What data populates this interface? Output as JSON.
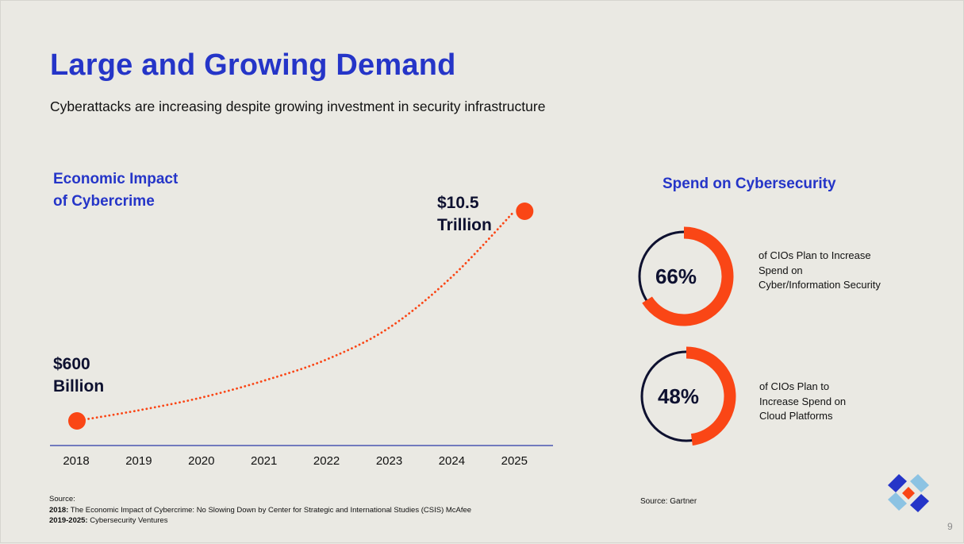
{
  "slide": {
    "title": "Large and Growing Demand",
    "subtitle": "Cyberattacks are increasing despite growing investment in security infrastructure",
    "page_number": "9",
    "colors": {
      "background": "#eae9e3",
      "brand_blue": "#2535c8",
      "accent_orange": "#fa4616",
      "navy": "#0e1130",
      "light_blue": "#8cc3e3"
    }
  },
  "left_panel": {
    "title_line1": "Economic Impact",
    "title_line2": "of Cybercrime",
    "start_label_line1": "$600",
    "start_label_line2": "Billion",
    "end_label_line1": "$10.5",
    "end_label_line2": "Trillion",
    "source": {
      "heading": "Source:",
      "line1_bold": "2018:",
      "line1_text": " The Economic Impact of Cybercrime: No Slowing Down by Center for Strategic and International Studies (CSIS) McAfee",
      "line2_bold": "2019-2025:",
      "line2_text": " Cybersecurity Ventures"
    }
  },
  "right_panel": {
    "title": "Spend on Cybersecurity",
    "donuts": [
      {
        "value": 66,
        "label": "66%",
        "description": "of CIOs Plan to Increase Spend on Cyber/Information Security"
      },
      {
        "value": 48,
        "label": "48%",
        "description": "of CIOs Plan to Increase Spend on Cloud Platforms"
      }
    ],
    "source": "Source: Gartner"
  },
  "chart_data": [
    {
      "type": "line",
      "title": "Economic Impact of Cybercrime",
      "xlabel": "",
      "ylabel": "",
      "categories": [
        "2018",
        "2019",
        "2020",
        "2021",
        "2022",
        "2023",
        "2024",
        "2025"
      ],
      "series": [
        {
          "name": "Economic impact (USD trillion)",
          "style": "dotted curve",
          "values": [
            0.6,
            1.1,
            1.7,
            2.5,
            3.5,
            5.0,
            7.4,
            10.5
          ]
        }
      ],
      "annotations": [
        {
          "x": "2018",
          "text": "$600 Billion"
        },
        {
          "x": "2025",
          "text": "$10.5 Trillion"
        }
      ],
      "endpoint_markers": [
        "2018",
        "2025"
      ],
      "ylim": [
        0,
        10.5
      ],
      "grid": false,
      "y_axis_visible": false
    },
    {
      "type": "pie",
      "title": "Spend on Cybersecurity",
      "style": "donut",
      "series": [
        {
          "name": "of CIOs Plan to Increase Spend on Cyber/Information Security",
          "values": [
            66,
            34
          ]
        },
        {
          "name": "of CIOs Plan to Increase Spend on Cloud Platforms",
          "values": [
            48,
            52
          ]
        }
      ]
    }
  ]
}
